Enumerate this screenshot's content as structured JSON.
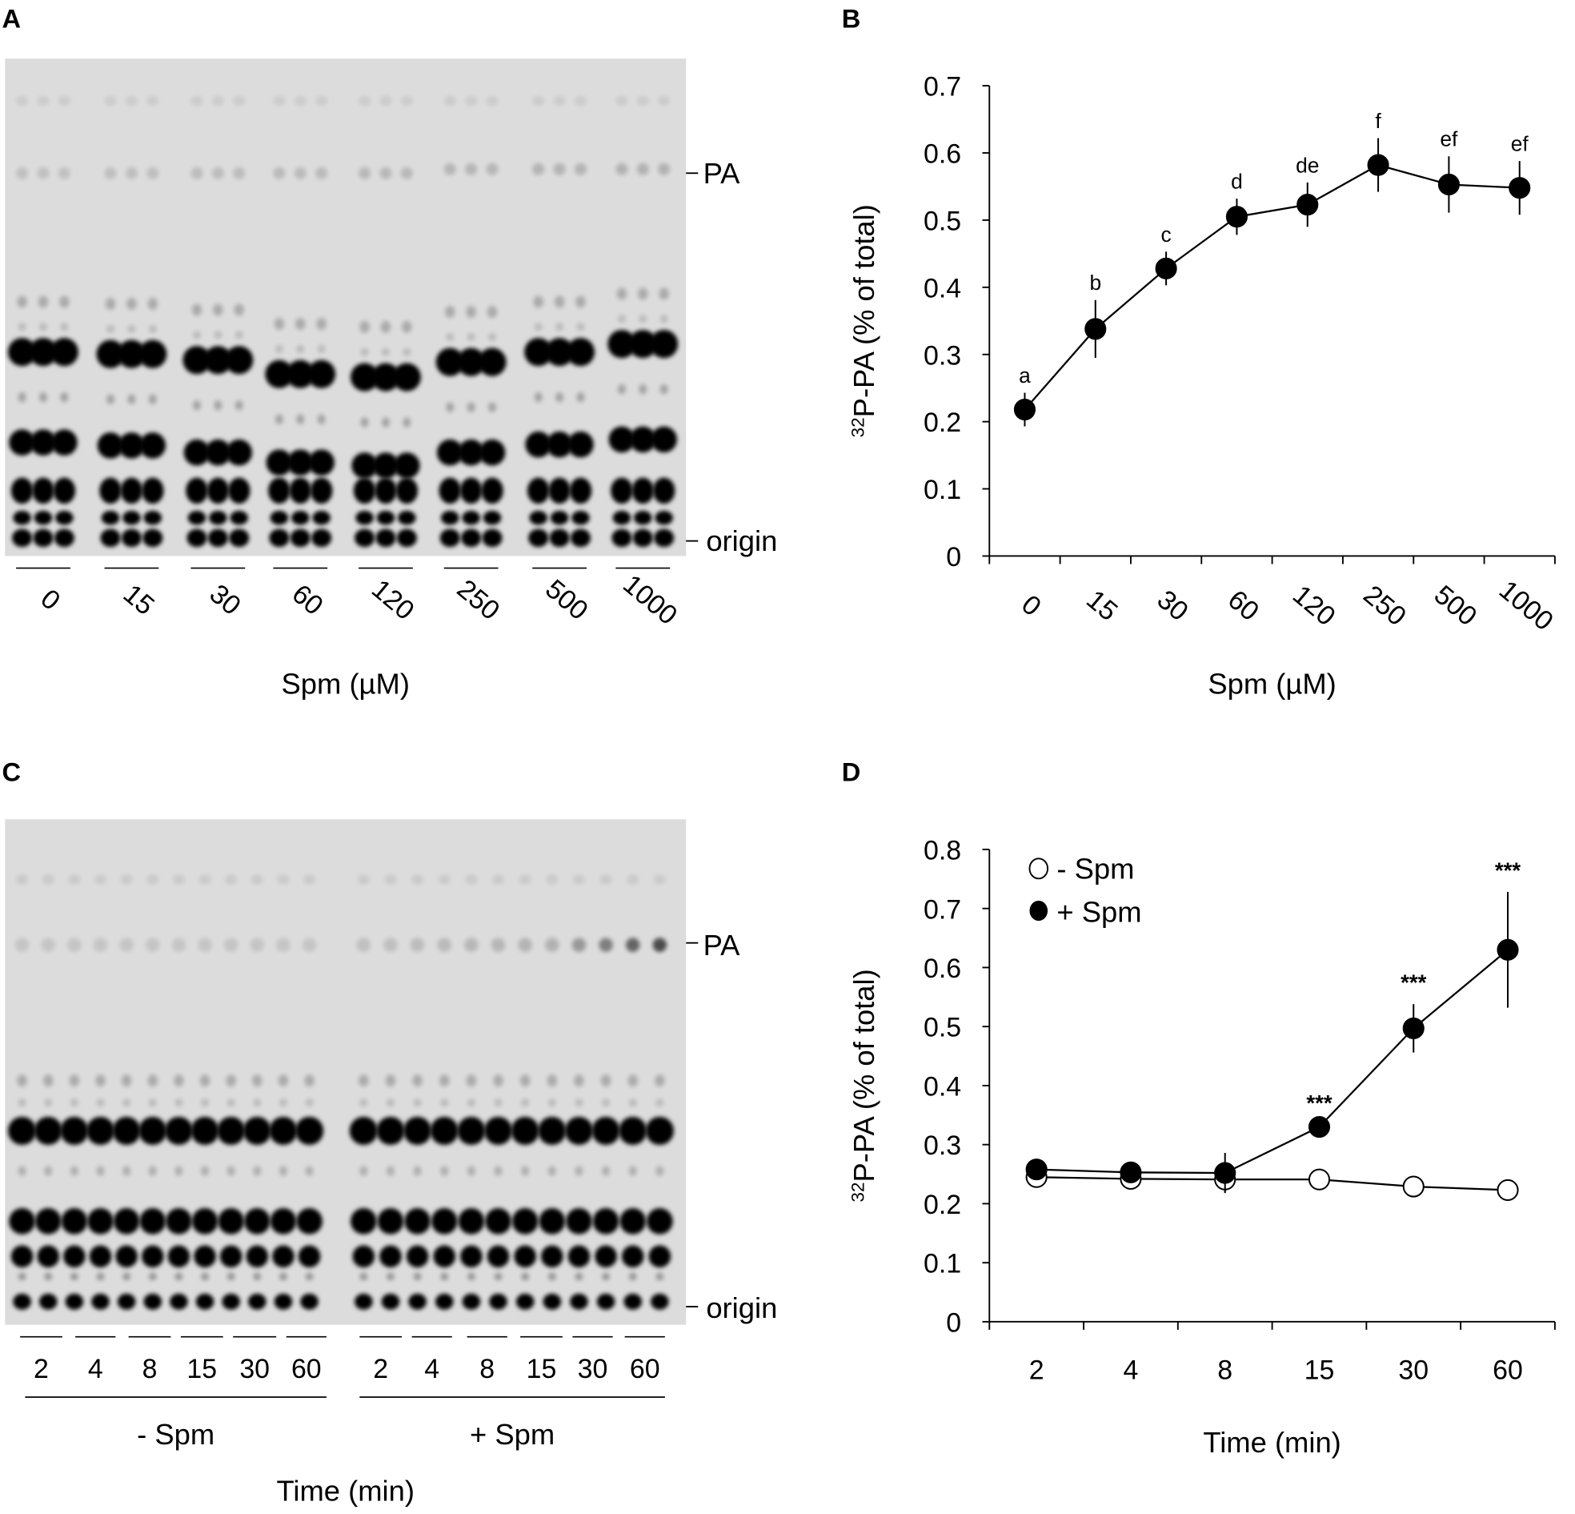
{
  "panels": {
    "a": {
      "letter": "A",
      "band_pa": "PA",
      "band_origin": "origin",
      "lane_labels": [
        "0",
        "15",
        "30",
        "60",
        "120",
        "250",
        "500",
        "1000"
      ],
      "xlabel": "Spm (µM)"
    },
    "b": {
      "letter": "B"
    },
    "c": {
      "letter": "C",
      "band_pa": "PA",
      "band_origin": "origin",
      "lane_labels_minus": [
        "2",
        "4",
        "8",
        "15",
        "30",
        "60"
      ],
      "lane_labels_plus": [
        "2",
        "4",
        "8",
        "15",
        "30",
        "60"
      ],
      "group_minus": "- Spm",
      "group_plus": "+ Spm",
      "xlabel": "Time (min)"
    },
    "d": {
      "letter": "D"
    }
  },
  "chart_data": [
    {
      "type": "line",
      "panel": "B",
      "categories": [
        "0",
        "15",
        "30",
        "60",
        "120",
        "250",
        "500",
        "1000"
      ],
      "values": [
        0.218,
        0.338,
        0.428,
        0.505,
        0.523,
        0.582,
        0.553,
        0.548
      ],
      "errors": [
        0.025,
        0.043,
        0.025,
        0.027,
        0.033,
        0.04,
        0.042,
        0.04
      ],
      "annotations": [
        "a",
        "b",
        "c",
        "d",
        "de",
        "f",
        "ef",
        "ef"
      ],
      "xlabel": "Spm (µM)",
      "ylabel_sup": "32",
      "ylabel": "P-PA (% of total)",
      "ylim": [
        0,
        0.7
      ],
      "yticks": [
        "0",
        "0.1",
        "0.2",
        "0.3",
        "0.4",
        "0.5",
        "0.6",
        "0.7"
      ],
      "grid": false
    },
    {
      "type": "line",
      "panel": "D",
      "categories": [
        "2",
        "4",
        "8",
        "15",
        "30",
        "60"
      ],
      "series": [
        {
          "name": "- Spm",
          "marker": "open-circle",
          "values": [
            0.245,
            0.242,
            0.241,
            0.241,
            0.229,
            0.223
          ],
          "errors": [
            0.006,
            0.006,
            0.022,
            0.004,
            0.006,
            0.005
          ]
        },
        {
          "name": "+ Spm",
          "marker": "filled-circle",
          "values": [
            0.258,
            0.253,
            0.252,
            0.33,
            0.497,
            0.63
          ],
          "errors": [
            0.006,
            0.01,
            0.034,
            0.004,
            0.041,
            0.098
          ]
        }
      ],
      "annotations": [
        "",
        "",
        "",
        "***",
        "***",
        "***"
      ],
      "xlabel": "Time (min)",
      "ylabel_sup": "32",
      "ylabel": "P-PA (% of total)",
      "ylim": [
        0,
        0.8
      ],
      "yticks": [
        "0",
        "0.1",
        "0.2",
        "0.3",
        "0.4",
        "0.5",
        "0.6",
        "0.7",
        "0.8"
      ],
      "legend": "top-left",
      "grid": false
    }
  ]
}
